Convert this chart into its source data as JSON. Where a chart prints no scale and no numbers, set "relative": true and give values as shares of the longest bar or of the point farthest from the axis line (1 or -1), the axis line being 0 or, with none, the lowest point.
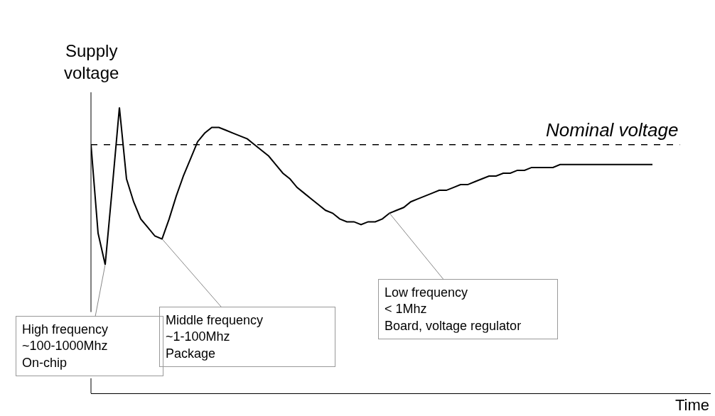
{
  "chart_data": {
    "type": "line",
    "relative": true,
    "xlabel": "Time",
    "ylabel": "Supply voltage",
    "categories": [
      null,
      null,
      null,
      null,
      null,
      null,
      null,
      null,
      null,
      null,
      null,
      null,
      null,
      null,
      null,
      null,
      null,
      null,
      null,
      null,
      null,
      null,
      null,
      null,
      null,
      null,
      null,
      null,
      null,
      null,
      null,
      null,
      null,
      null,
      null,
      null,
      null,
      null,
      null,
      null,
      null,
      null,
      null,
      null,
      null,
      null,
      null,
      null,
      null,
      null,
      null,
      null,
      null,
      null,
      null,
      null,
      null,
      null,
      null,
      null,
      null,
      null,
      null,
      null,
      null,
      null,
      null,
      null,
      null,
      null,
      null,
      null,
      null,
      null,
      null,
      null,
      null,
      null,
      null,
      null,
      null,
      null,
      null,
      null,
      null,
      null,
      null,
      null
    ],
    "series": [
      {
        "color": "#000000",
        "values": [
          0.87,
          0.56,
          0.45,
          0.72,
          1,
          0.75,
          0.67,
          0.61,
          0.58,
          0.55,
          0.54,
          0.61,
          0.69,
          0.76,
          0.82,
          0.88,
          0.91,
          0.93,
          0.93,
          0.92,
          0.91,
          0.9,
          0.89,
          0.87,
          0.85,
          0.83,
          0.8,
          0.77,
          0.75,
          0.72,
          0.7,
          0.68,
          0.66,
          0.64,
          0.63,
          0.61,
          0.6,
          0.6,
          0.59,
          0.6,
          0.6,
          0.61,
          0.63,
          0.64,
          0.65,
          0.67,
          0.68,
          0.69,
          0.7,
          0.71,
          0.71,
          0.72,
          0.73,
          0.73,
          0.74,
          0.75,
          0.76,
          0.76,
          0.77,
          0.77,
          0.78,
          0.78,
          0.79,
          0.79,
          0.79,
          0.79,
          0.8,
          0.8,
          0.8,
          0.8,
          0.8,
          0.8,
          0.8,
          0.8,
          0.8,
          0.8,
          0.8,
          0.8,
          0.8,
          0.8,
          null,
          null,
          null,
          null,
          null,
          null,
          null,
          null
        ]
      }
    ],
    "ref_lines": [
      {
        "axis": "y",
        "value": 0.87,
        "label": "Nominal voltage",
        "color": "#000000",
        "line_style": "dashed"
      }
    ],
    "annotations": [
      "High frequency\n~100-1000Mhz\nOn-chip",
      "Middle frequency\n~1-100Mhz\nPackage",
      "Low frequency\n< 1Mhz\nBoard, voltage regulator"
    ],
    "legend": false,
    "marker": "none",
    "line_style": "solid"
  }
}
